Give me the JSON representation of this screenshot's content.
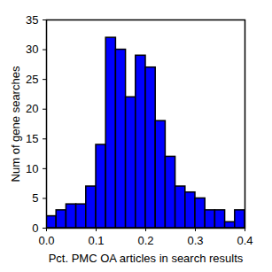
{
  "chart_data": {
    "type": "histogram",
    "xlabel": "Pct. PMC OA articles in search results",
    "ylabel": "Num of gene searches",
    "bins": [
      0.0,
      0.02,
      0.04,
      0.06,
      0.08,
      0.1,
      0.12,
      0.14,
      0.16,
      0.18,
      0.2,
      0.22,
      0.24,
      0.26,
      0.28,
      0.3,
      0.32,
      0.34,
      0.36,
      0.38,
      0.4
    ],
    "values": [
      2,
      3,
      4,
      4,
      7,
      14,
      32,
      30,
      22,
      29,
      27,
      18,
      12,
      7,
      6,
      5,
      3,
      3,
      1,
      3
    ],
    "color": "#0000ff",
    "xlim": [
      0,
      0.4
    ],
    "xticks": [
      {
        "value": 0,
        "label": "0.0"
      },
      {
        "value": 0.1,
        "label": "0.1"
      },
      {
        "value": 0.2,
        "label": "0.2"
      },
      {
        "value": 0.3,
        "label": "0.3"
      },
      {
        "value": 0.4,
        "label": "0.4"
      }
    ],
    "ylim": [
      0,
      35
    ],
    "yticks": [
      0,
      5,
      10,
      15,
      20,
      25,
      30,
      35
    ],
    "grid": false
  }
}
